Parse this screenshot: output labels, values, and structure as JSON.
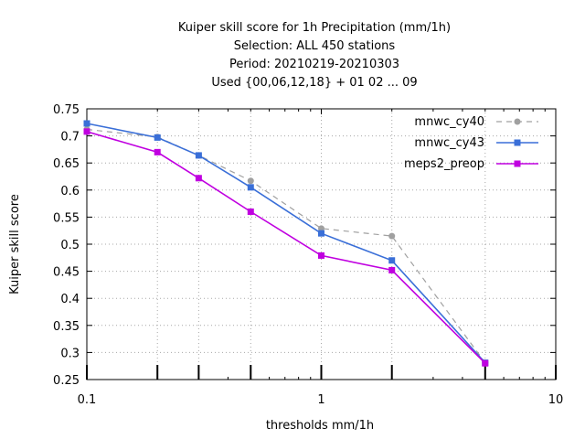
{
  "chart_data": {
    "type": "line",
    "title_lines": [
      "Kuiper skill score  for 1h Precipitation (mm/1h)",
      "Selection: ALL     450 stations",
      "Period: 20210219-20210303",
      "Used {00,06,12,18} + 01 02 ... 09"
    ],
    "xlabel": "thresholds mm/1h",
    "ylabel": "Kuiper skill score",
    "xscale": "log",
    "xlim": [
      0.1,
      10
    ],
    "ylim": [
      0.25,
      0.75
    ],
    "xticks": [
      {
        "value": 0.1,
        "label": "0.1"
      },
      {
        "value": 1,
        "label": "1"
      },
      {
        "value": 10,
        "label": "10"
      }
    ],
    "yticks": [
      {
        "value": 0.25,
        "label": "0.25"
      },
      {
        "value": 0.3,
        "label": "0.3"
      },
      {
        "value": 0.35,
        "label": "0.35"
      },
      {
        "value": 0.4,
        "label": "0.4"
      },
      {
        "value": 0.45,
        "label": "0.45"
      },
      {
        "value": 0.5,
        "label": "0.5"
      },
      {
        "value": 0.55,
        "label": "0.55"
      },
      {
        "value": 0.6,
        "label": "0.6"
      },
      {
        "value": 0.65,
        "label": "0.65"
      },
      {
        "value": 0.7,
        "label": "0.7"
      },
      {
        "value": 0.75,
        "label": "0.75"
      }
    ],
    "threshold_marks": [
      0.1,
      0.2,
      0.3,
      0.5,
      1,
      2,
      5,
      10
    ],
    "grid": true,
    "legend_position": "top-right",
    "series": [
      {
        "name": "mnwc_cy40",
        "color": "#a0a0a0",
        "dashed": true,
        "marker": "circle",
        "x": [
          0.1,
          0.2,
          0.3,
          0.5,
          1,
          2,
          5
        ],
        "y": [
          0.712,
          0.698,
          0.664,
          0.617,
          0.529,
          0.515,
          0.281
        ]
      },
      {
        "name": "mnwc_cy43",
        "color": "#3a6fd8",
        "dashed": false,
        "marker": "square",
        "x": [
          0.1,
          0.2,
          0.3,
          0.5,
          1,
          2,
          5
        ],
        "y": [
          0.723,
          0.697,
          0.664,
          0.605,
          0.52,
          0.47,
          0.281
        ]
      },
      {
        "name": "meps2_preop",
        "color": "#c000e0",
        "dashed": false,
        "marker": "square",
        "x": [
          0.1,
          0.2,
          0.3,
          0.5,
          1,
          2,
          5
        ],
        "y": [
          0.708,
          0.67,
          0.622,
          0.56,
          0.479,
          0.452,
          0.28
        ]
      }
    ]
  }
}
